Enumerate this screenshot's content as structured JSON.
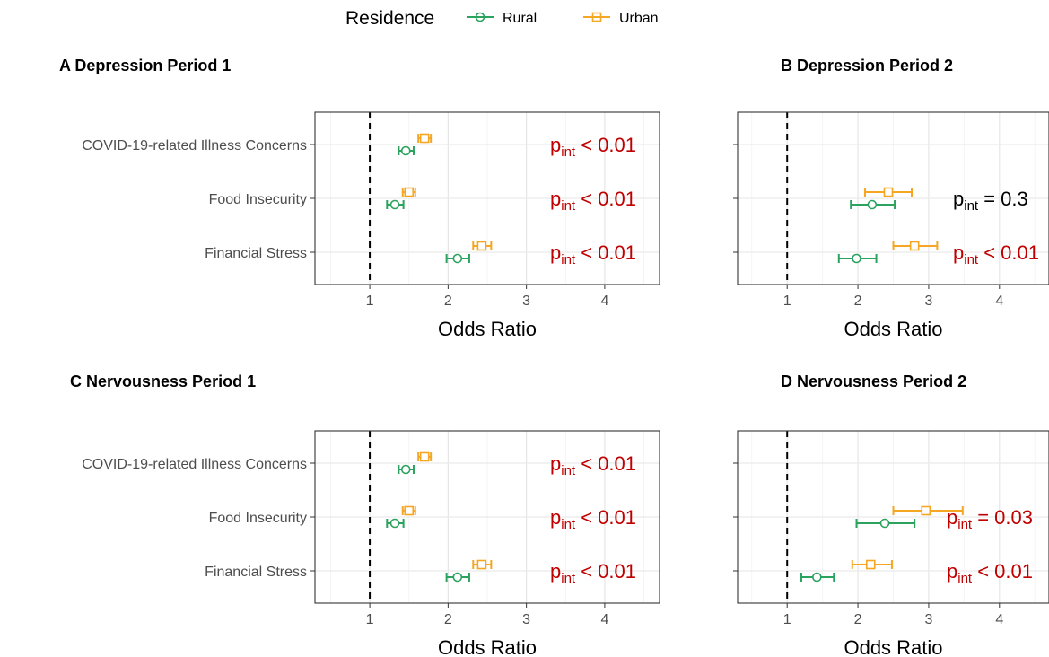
{
  "legend": {
    "title": "Residence",
    "entries": [
      {
        "name": "Rural",
        "color": "#2ca25f",
        "marker": "circle"
      },
      {
        "name": "Urban",
        "color": "#f5a623",
        "marker": "square"
      }
    ]
  },
  "colors": {
    "significant": "#c00000",
    "nonsignificant": "#000000"
  },
  "chart_data": [
    {
      "type": "forest",
      "title": "A Depression Period 1",
      "xlabel": "Odds Ratio",
      "xlim": [
        0.3,
        4.7
      ],
      "xticks": [
        1,
        2,
        3,
        4
      ],
      "reference_line": 1,
      "categories": [
        "COVID-19-related Illness Concerns",
        "Food Insecurity",
        "Financial Stress"
      ],
      "show_category_labels": true,
      "series": [
        {
          "name": "Rural",
          "estimates": [
            1.46,
            1.32,
            2.12
          ],
          "lower": [
            1.37,
            1.22,
            1.98
          ],
          "upper": [
            1.56,
            1.43,
            2.27
          ]
        },
        {
          "name": "Urban",
          "estimates": [
            1.7,
            1.5,
            2.43
          ],
          "lower": [
            1.62,
            1.42,
            2.32
          ],
          "upper": [
            1.78,
            1.58,
            2.55
          ]
        }
      ],
      "p_labels": [
        {
          "prefix": "p",
          "sub": "int",
          "text": " < 0.01",
          "significant": true
        },
        {
          "prefix": "p",
          "sub": "int",
          "text": " < 0.01",
          "significant": true
        },
        {
          "prefix": "p",
          "sub": "int",
          "text": " < 0.01",
          "significant": true
        }
      ]
    },
    {
      "type": "forest",
      "title": "B Depression Period 2",
      "xlabel": "Odds Ratio",
      "xlim": [
        0.3,
        4.7
      ],
      "xticks": [
        1,
        2,
        3,
        4
      ],
      "reference_line": 1,
      "categories": [
        "COVID-19-related Illness Concerns",
        "Food Insecurity",
        "Financial Stress"
      ],
      "show_category_labels": false,
      "series": [
        {
          "name": "Rural",
          "estimates": [
            null,
            2.2,
            1.98
          ],
          "lower": [
            null,
            1.9,
            1.73
          ],
          "upper": [
            null,
            2.52,
            2.26
          ]
        },
        {
          "name": "Urban",
          "estimates": [
            null,
            2.43,
            2.8
          ],
          "lower": [
            null,
            2.1,
            2.5
          ],
          "upper": [
            null,
            2.76,
            3.12
          ]
        }
      ],
      "p_labels": [
        null,
        {
          "prefix": "p",
          "sub": "int",
          "text": " = 0.3",
          "significant": false
        },
        {
          "prefix": "p",
          "sub": "int",
          "text": " < 0.01",
          "significant": true
        }
      ]
    },
    {
      "type": "forest",
      "title": "C Nervousness Period 1",
      "xlabel": "Odds Ratio",
      "xlim": [
        0.3,
        4.7
      ],
      "xticks": [
        1,
        2,
        3,
        4
      ],
      "reference_line": 1,
      "categories": [
        "COVID-19-related Illness Concerns",
        "Food Insecurity",
        "Financial Stress"
      ],
      "show_category_labels": true,
      "series": [
        {
          "name": "Rural",
          "estimates": [
            1.46,
            1.32,
            2.12
          ],
          "lower": [
            1.37,
            1.22,
            1.98
          ],
          "upper": [
            1.56,
            1.43,
            2.27
          ]
        },
        {
          "name": "Urban",
          "estimates": [
            1.7,
            1.5,
            2.43
          ],
          "lower": [
            1.62,
            1.42,
            2.32
          ],
          "upper": [
            1.78,
            1.58,
            2.55
          ]
        }
      ],
      "p_labels": [
        {
          "prefix": "p",
          "sub": "int",
          "text": " < 0.01",
          "significant": true
        },
        {
          "prefix": "p",
          "sub": "int",
          "text": " < 0.01",
          "significant": true
        },
        {
          "prefix": "p",
          "sub": "int",
          "text": " < 0.01",
          "significant": true
        }
      ]
    },
    {
      "type": "forest",
      "title": "D Nervousness Period 2",
      "xlabel": "Odds Ratio",
      "xlim": [
        0.3,
        4.7
      ],
      "xticks": [
        1,
        2,
        3,
        4
      ],
      "reference_line": 1,
      "categories": [
        "COVID-19-related Illness Concerns",
        "Food Insecurity",
        "Financial Stress"
      ],
      "show_category_labels": false,
      "series": [
        {
          "name": "Rural",
          "estimates": [
            null,
            2.38,
            1.42
          ],
          "lower": [
            null,
            1.98,
            1.2
          ],
          "upper": [
            null,
            2.8,
            1.66
          ]
        },
        {
          "name": "Urban",
          "estimates": [
            null,
            2.96,
            2.18
          ],
          "lower": [
            null,
            2.5,
            1.92
          ],
          "upper": [
            null,
            3.48,
            2.48
          ]
        }
      ],
      "p_labels": [
        null,
        {
          "prefix": "p",
          "sub": "int",
          "text": " = 0.03",
          "significant": true
        },
        {
          "prefix": "p",
          "sub": "int",
          "text": " < 0.01",
          "significant": true
        }
      ]
    }
  ]
}
